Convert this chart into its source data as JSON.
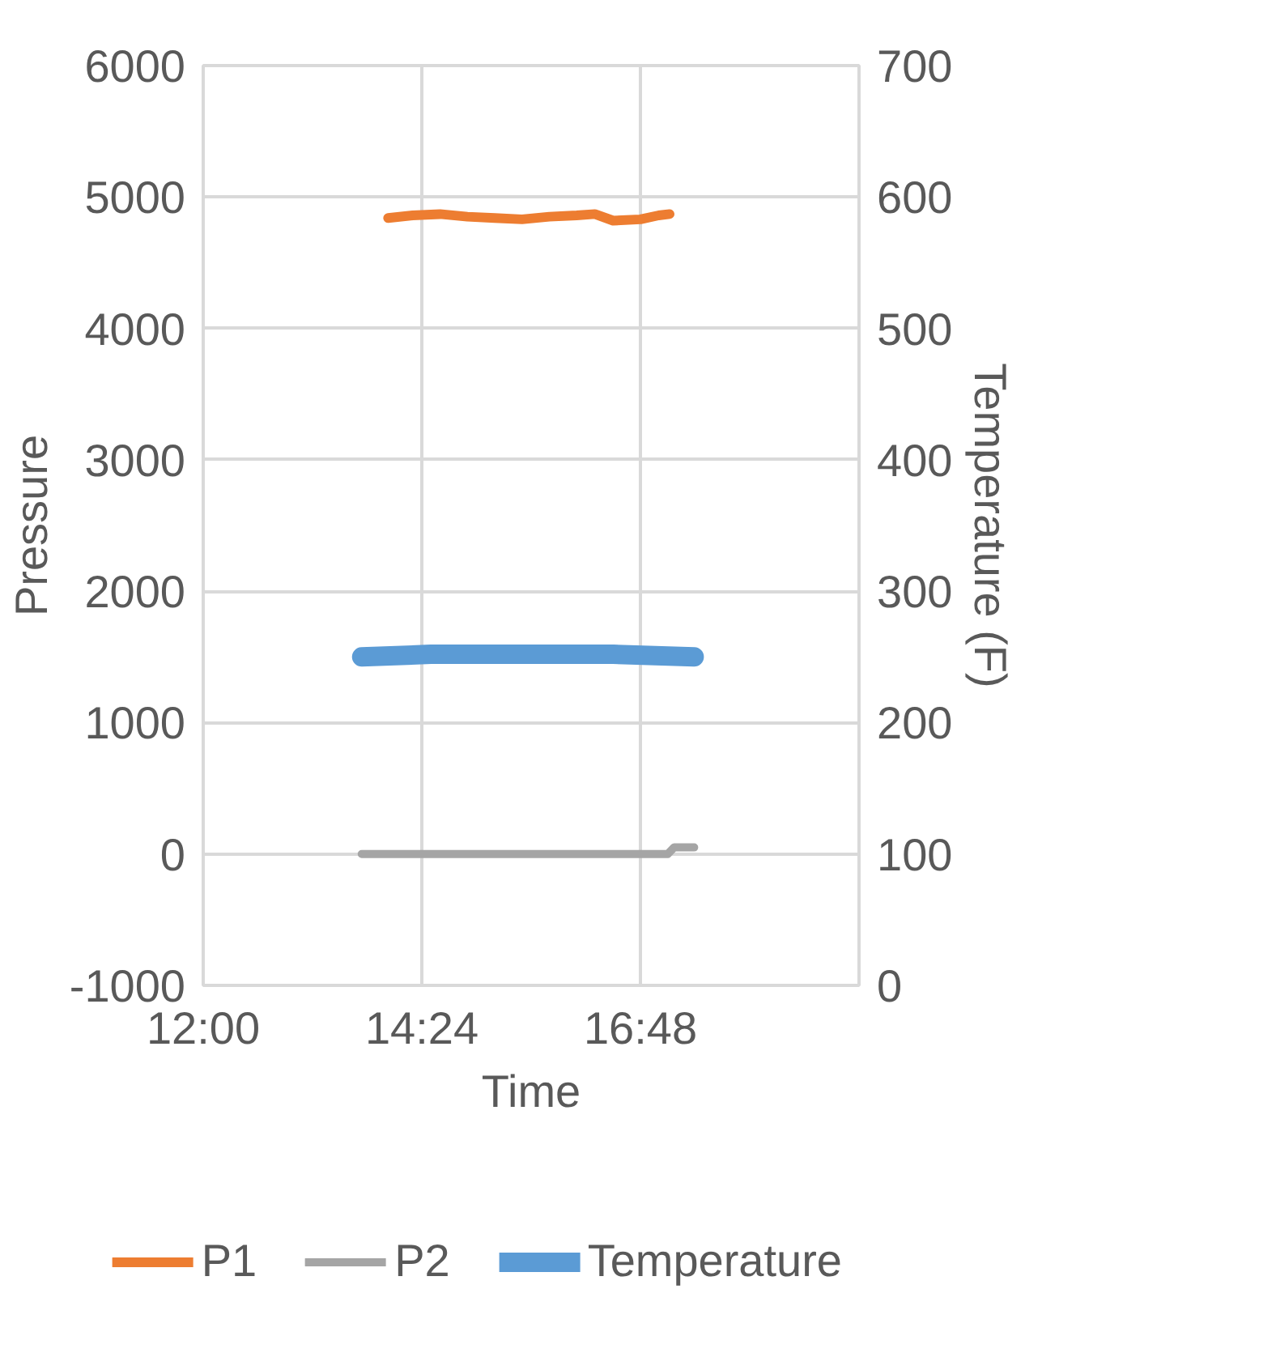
{
  "chart_data": {
    "type": "line",
    "xlabel": "Time",
    "ylabel": "Pressure",
    "y2label": "Temperature (F)",
    "xlim": [
      12,
      19.2
    ],
    "xticks": [
      {
        "value": 12,
        "label": "12:00"
      },
      {
        "value": 14.4,
        "label": "14:24"
      },
      {
        "value": 16.8,
        "label": "16:48"
      },
      {
        "value": 19.2,
        "label": null
      }
    ],
    "ylim": [
      -1000,
      6000
    ],
    "yticks": [
      -1000,
      0,
      1000,
      2000,
      3000,
      4000,
      5000,
      6000
    ],
    "y2lim": [
      0,
      700
    ],
    "y2ticks": [
      0,
      100,
      200,
      300,
      400,
      500,
      600,
      700
    ],
    "grid": true,
    "legend": "bottom",
    "series": [
      {
        "name": "P1",
        "color": "#ed7d31",
        "x": [
          14.03,
          14.3,
          14.6,
          14.9,
          15.2,
          15.5,
          15.8,
          16.1,
          16.3,
          16.5,
          16.8,
          17.0,
          17.12
        ],
        "values": [
          4840,
          4860,
          4870,
          4850,
          4840,
          4830,
          4850,
          4860,
          4870,
          4820,
          4830,
          4860,
          4870
        ]
      },
      {
        "name": "P2",
        "color": "#a5a5a5",
        "x": [
          13.74,
          15.0,
          16.0,
          17.1,
          17.17,
          17.39
        ],
        "values": [
          0,
          0,
          0,
          0,
          50,
          50
        ]
      },
      {
        "name": "Temperature",
        "color": "#5b9bd5",
        "axis": "y2",
        "x": [
          13.74,
          14.5,
          15.5,
          16.5,
          17.39
        ],
        "values": [
          250,
          252,
          252,
          252,
          250
        ]
      }
    ]
  }
}
